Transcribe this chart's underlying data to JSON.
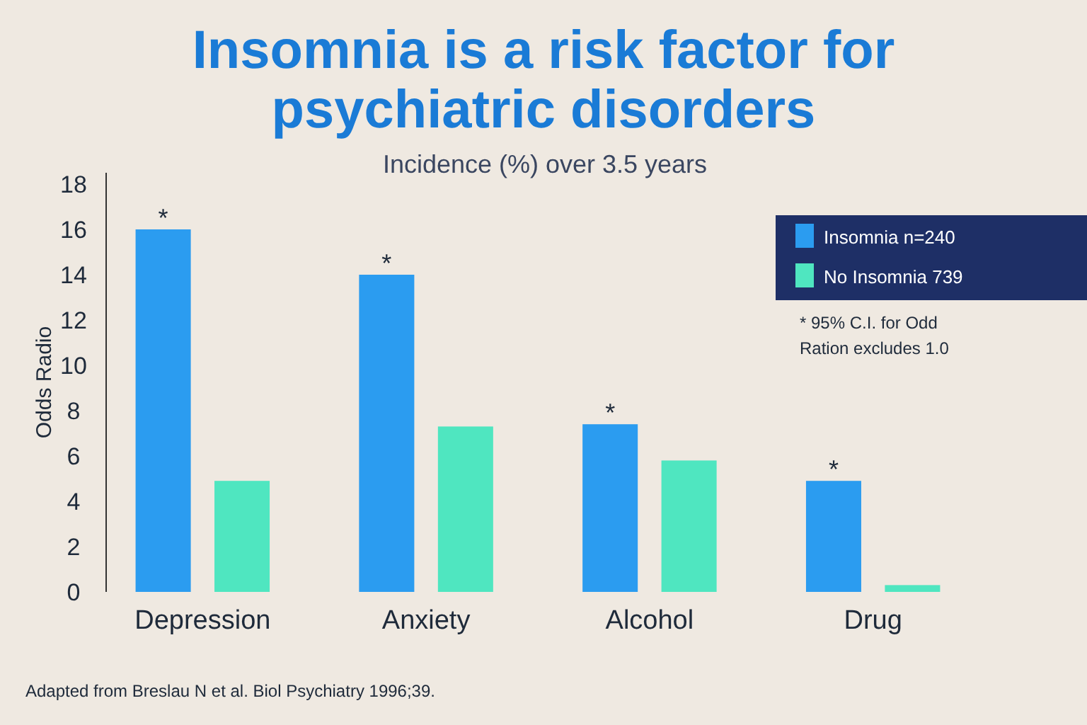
{
  "chart_data": {
    "type": "bar",
    "title": "Insomnia is a risk factor for psychiatric disorders",
    "subtitle": "Incidence (%) over 3.5 years",
    "ylabel": "Odds Radio",
    "categories": [
      "Depression",
      "Anxiety",
      "Alcohol",
      "Drug"
    ],
    "series": [
      {
        "name": "Insomnia n=240",
        "color": "#2b9cf0",
        "values": [
          16,
          14,
          7.4,
          4.9
        ]
      },
      {
        "name": "No Insomnia 739",
        "color": "#4fe6c0",
        "values": [
          4.9,
          7.3,
          5.8,
          0.3
        ]
      }
    ],
    "ylim": [
      0,
      18.5
    ],
    "yticks": [
      0,
      2,
      4,
      6,
      8,
      10,
      12,
      14,
      16,
      18
    ],
    "grid": false,
    "legend": "top right",
    "annotations": [
      "*",
      "*",
      "*",
      "*",
      "* 95% C.I. for Odd Ration excludes 1.0",
      "Adapted from Breslau N et al. Biol Psychiatry 1996;39."
    ]
  }
}
